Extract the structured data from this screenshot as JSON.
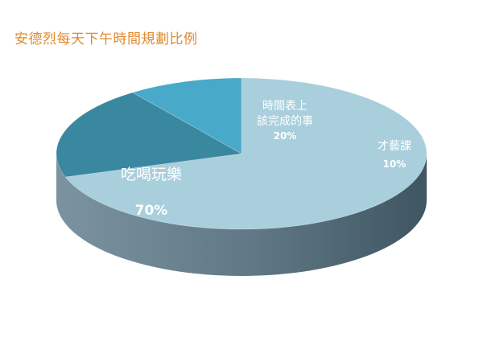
{
  "chart_data": {
    "type": "pie",
    "title": "安德烈每天下午時間規劃比例",
    "slices": [
      {
        "line1": "吃喝玩樂",
        "line2": "",
        "value": 70,
        "value_label": "70%",
        "color": "#A9CFDC"
      },
      {
        "line1": "時間表上",
        "line2": "該完成的事",
        "value": 20,
        "value_label": "20%",
        "color": "#3A88A0"
      },
      {
        "line1": "才藝課",
        "line2": "",
        "value": 10,
        "value_label": "10%",
        "color": "#48A9C8"
      }
    ],
    "legend": "none",
    "style": "3d"
  }
}
